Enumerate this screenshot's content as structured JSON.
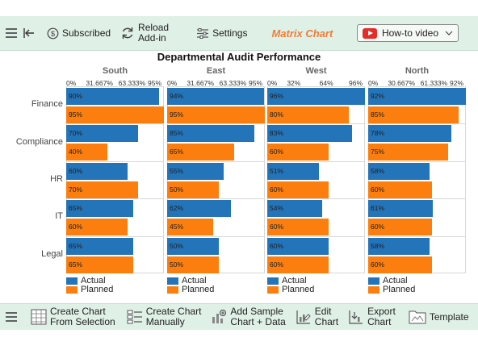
{
  "toolbar_top": {
    "subscribed": "Subscribed",
    "reload": [
      "Reload",
      "Add-in"
    ],
    "settings": "Settings",
    "brand": "Matrix Chart",
    "howto": "How-to video"
  },
  "toolbar_bottom": {
    "create_sel": [
      "Create Chart",
      "From Selection"
    ],
    "create_man": [
      "Create Chart",
      "Manually"
    ],
    "add_sample": [
      "Add Sample",
      "Chart + Data"
    ],
    "edit": [
      "Edit",
      "Chart"
    ],
    "export": [
      "Export",
      "Chart"
    ],
    "template": "Template"
  },
  "colors": {
    "actual": "#2474b9",
    "planned": "#fb7e0f"
  },
  "chart_data": {
    "type": "bar",
    "title": "Departmental Audit Performance",
    "categories": [
      "Finance",
      "Compliance",
      "HR",
      "IT",
      "Legal"
    ],
    "legend": [
      "Actual",
      "Planned"
    ],
    "panels": [
      {
        "name": "South",
        "max": 95,
        "ticks": [
          "0%",
          "31.667%",
          "63.333%",
          "95%"
        ],
        "actual": [
          90,
          70,
          60,
          65,
          65
        ],
        "planned": [
          95,
          40,
          70,
          60,
          65
        ]
      },
      {
        "name": "East",
        "max": 95,
        "ticks": [
          "0%",
          "31.667%",
          "63.333%",
          "95%"
        ],
        "actual": [
          94,
          85,
          55,
          62,
          50
        ],
        "planned": [
          95,
          65,
          50,
          45,
          50
        ]
      },
      {
        "name": "West",
        "max": 96,
        "ticks": [
          "0%",
          "32%",
          "64%",
          "96%"
        ],
        "actual": [
          96,
          83,
          51,
          54,
          60
        ],
        "planned": [
          80,
          60,
          60,
          60,
          60
        ]
      },
      {
        "name": "North",
        "max": 92,
        "ticks": [
          "0%",
          "30.667%",
          "61.333%",
          "92%"
        ],
        "actual": [
          92,
          78,
          58,
          61,
          58
        ],
        "planned": [
          85,
          75,
          60,
          60,
          60
        ]
      }
    ]
  }
}
